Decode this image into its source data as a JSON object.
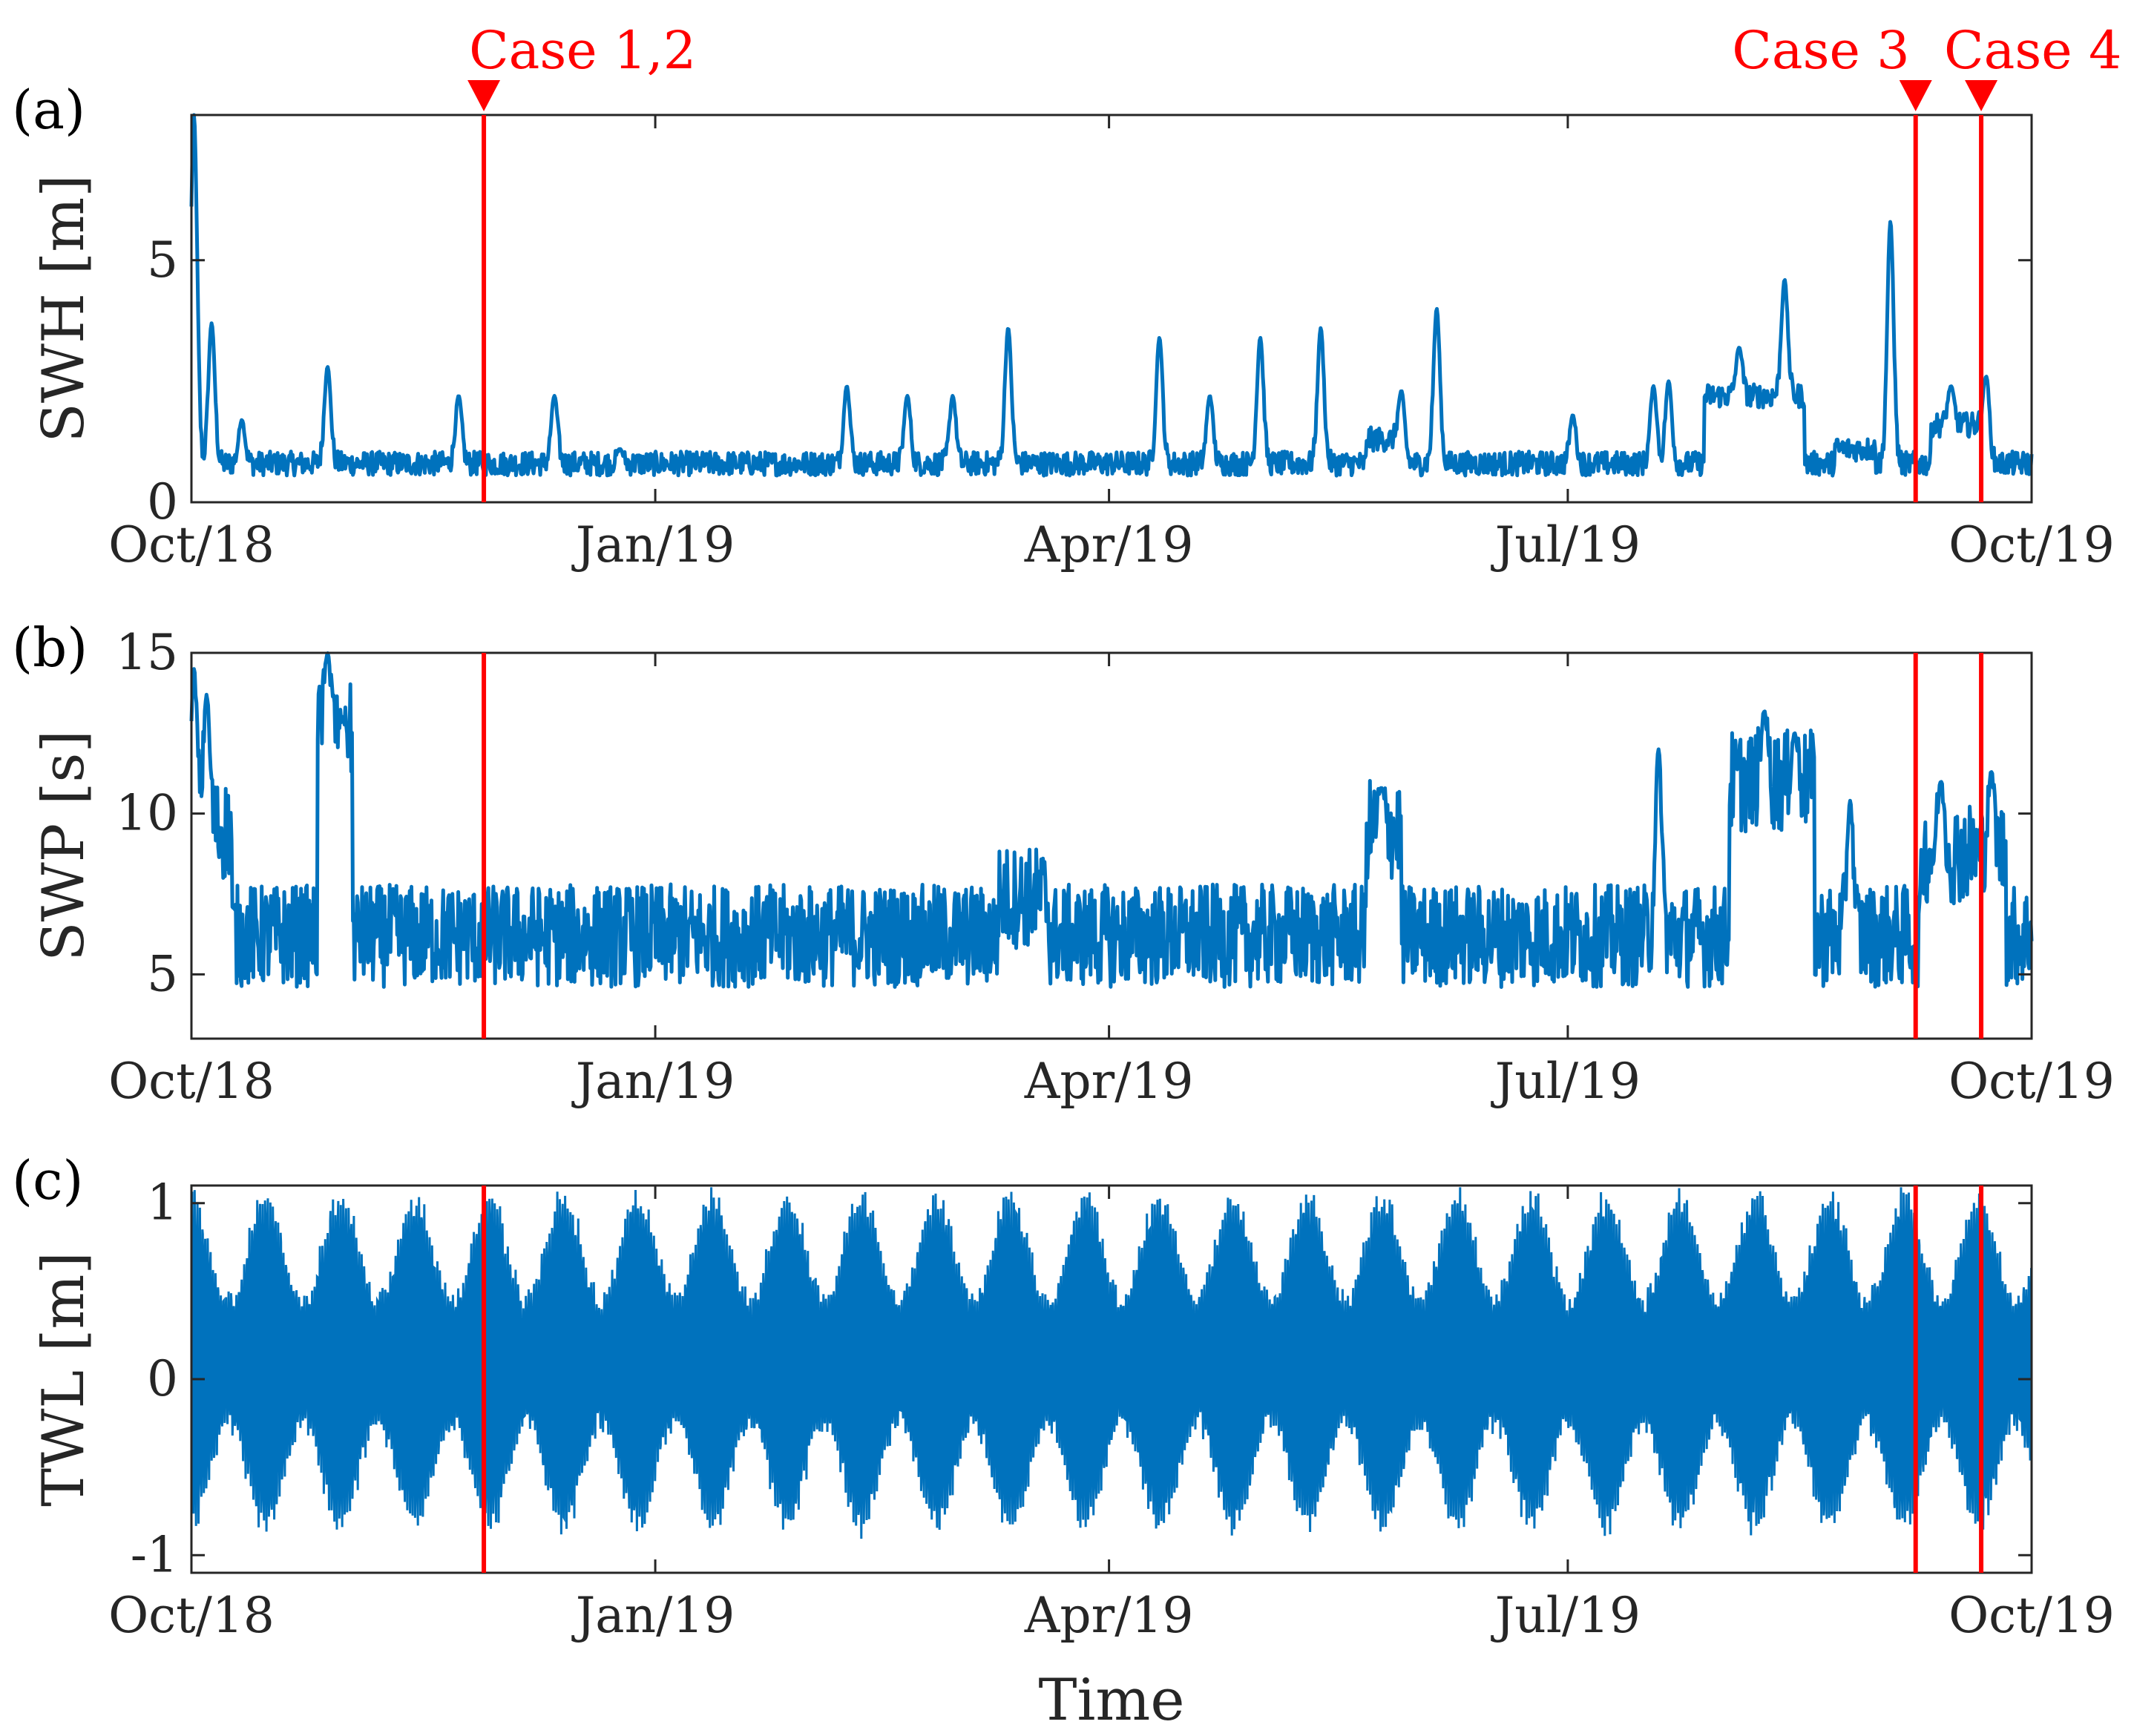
{
  "chart_data": [
    {
      "type": "line",
      "panel_label": "(a)",
      "ylabel": "SWH [m]",
      "xlabel": "",
      "ylim": [
        0,
        8
      ],
      "yticks": [
        0,
        5
      ],
      "xlim_days": [
        0,
        365
      ],
      "xticks": [
        {
          "day": 0,
          "label": "Oct/18"
        },
        {
          "day": 92,
          "label": "Jan/19"
        },
        {
          "day": 182,
          "label": "Apr/19"
        },
        {
          "day": 273,
          "label": "Jul/19"
        },
        {
          "day": 365,
          "label": "Oct/19"
        }
      ],
      "series": [
        {
          "name": "SWH",
          "base": 0.8,
          "noise": 0.25,
          "min": 0.3,
          "spikes": [
            [
              0.5,
              8.0
            ],
            [
              4,
              3.7
            ],
            [
              10,
              1.7
            ],
            [
              27,
              2.8
            ],
            [
              53,
              2.2
            ],
            [
              72,
              2.2
            ],
            [
              85,
              1.1
            ],
            [
              130,
              2.4
            ],
            [
              142,
              2.2
            ],
            [
              151,
              2.2
            ],
            [
              162,
              3.6
            ],
            [
              192,
              3.4
            ],
            [
              202,
              2.2
            ],
            [
              212,
              3.4
            ],
            [
              224,
              3.6
            ],
            [
              240,
              2.3
            ],
            [
              247,
              4.0
            ],
            [
              274,
              1.8
            ],
            [
              290,
              2.4
            ],
            [
              293,
              2.5
            ],
            [
              307,
              3.2
            ],
            [
              316,
              4.6
            ],
            [
              337,
              5.8
            ],
            [
              349,
              2.4
            ],
            [
              356,
              2.6
            ]
          ],
          "plateaus": [
            [
              300,
              320,
              2.2
            ],
            [
              326,
              334,
              1.1
            ],
            [
              345,
              356,
              1.6
            ],
            [
              233,
              240,
              1.3
            ]
          ]
        }
      ]
    },
    {
      "type": "line",
      "panel_label": "(b)",
      "ylabel": "SWP [s]",
      "xlabel": "",
      "ylim": [
        3,
        15
      ],
      "yticks": [
        5,
        10,
        15
      ],
      "xlim_days": [
        0,
        365
      ],
      "xticks": [
        {
          "day": 0,
          "label": "Oct/18"
        },
        {
          "day": 92,
          "label": "Jan/19"
        },
        {
          "day": 182,
          "label": "Apr/19"
        },
        {
          "day": 273,
          "label": "Jul/19"
        },
        {
          "day": 365,
          "label": "Oct/19"
        }
      ],
      "series": [
        {
          "name": "SWP",
          "base": 6.2,
          "noise": 1.6,
          "min": 3.1,
          "max": 15,
          "spikes": [
            [
              0.5,
              14.5
            ],
            [
              3,
              13.7
            ],
            [
              27,
              15.0
            ],
            [
              30,
              13.0
            ],
            [
              236,
              10.8
            ],
            [
              291,
              12.0
            ],
            [
              312,
              13.2
            ],
            [
              318,
              12.5
            ],
            [
              329,
              10.4
            ],
            [
              347,
              11.0
            ],
            [
              357,
              11.3
            ]
          ],
          "plateaus": [
            [
              0,
              8,
              9.5
            ],
            [
              25,
              32,
              12.5
            ],
            [
              233,
              240,
              9.5
            ],
            [
              305,
              322,
              11.0
            ],
            [
              343,
              360,
              8.8
            ],
            [
              160,
              170,
              7.4
            ]
          ]
        }
      ]
    },
    {
      "type": "line",
      "panel_label": "(c)",
      "ylabel": "TWL [m]",
      "xlabel": "Time",
      "ylim": [
        -1.1,
        1.1
      ],
      "yticks": [
        -1,
        0,
        1
      ],
      "xlim_days": [
        0,
        365
      ],
      "xticks": [
        {
          "day": 0,
          "label": "Oct/18"
        },
        {
          "day": 92,
          "label": "Jan/19"
        },
        {
          "day": 182,
          "label": "Apr/19"
        },
        {
          "day": 273,
          "label": "Jul/19"
        },
        {
          "day": 365,
          "label": "Oct/19"
        }
      ],
      "series": [
        {
          "name": "TWL",
          "amplitude_max": 0.95,
          "amplitude_min": 0.35,
          "spring_neap_period_days": 14.77,
          "mean": 0.1
        }
      ]
    }
  ],
  "cases": [
    {
      "label": "Case 1,2",
      "day": 58
    },
    {
      "label": "Case 3",
      "day": 342
    },
    {
      "label": "Case 4",
      "day": 355
    }
  ],
  "colors": {
    "series": "#0072bd",
    "case": "#ff0000"
  }
}
